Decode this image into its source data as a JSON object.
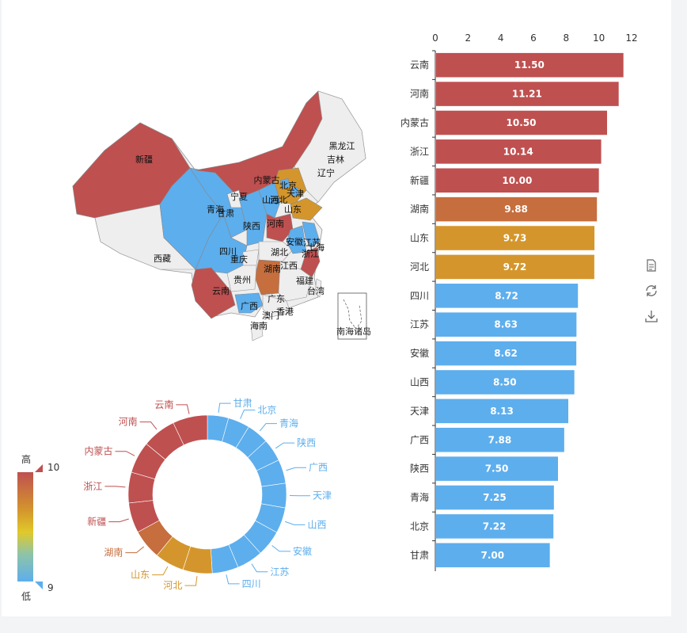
{
  "colors": {
    "high": "#bf5050",
    "orange": "#c66e3e",
    "gold": "#d4962c",
    "low": "#5daeed",
    "none": "#eeeeee",
    "axis": "#333333"
  },
  "visual_map": {
    "high_label": "高",
    "low_label": "低",
    "max_value": "10",
    "min_value": "9"
  },
  "map": {
    "south_sea_label": "南海诸岛"
  },
  "toolbox": {
    "icons": [
      "data-view-icon",
      "restore-icon",
      "save-image-icon"
    ]
  },
  "chart_data": [
    {
      "type": "bar",
      "orientation": "horizontal",
      "categories": [
        "云南",
        "河南",
        "内蒙古",
        "浙江",
        "新疆",
        "湖南",
        "山东",
        "河北",
        "四川",
        "江苏",
        "安徽",
        "山西",
        "天津",
        "广西",
        "陕西",
        "青海",
        "北京",
        "甘肃"
      ],
      "values": [
        11.5,
        11.21,
        10.5,
        10.14,
        10.0,
        9.88,
        9.73,
        9.72,
        8.72,
        8.63,
        8.62,
        8.5,
        8.13,
        7.88,
        7.5,
        7.25,
        7.22,
        7.0
      ],
      "value_labels": [
        "11.50",
        "11.21",
        "10.50",
        "10.14",
        "10.00",
        "9.88",
        "9.73",
        "9.72",
        "8.72",
        "8.63",
        "8.62",
        "8.50",
        "8.13",
        "7.88",
        "7.50",
        "7.25",
        "7.22",
        "7.00"
      ],
      "xlim": [
        0,
        12
      ],
      "x_ticks": [
        "0",
        "2",
        "4",
        "6",
        "8",
        "10",
        "12"
      ],
      "axis_position": "top"
    },
    {
      "type": "pie",
      "style": "donut",
      "slices": [
        {
          "name": "甘肃",
          "value": 7.0
        },
        {
          "name": "北京",
          "value": 7.22
        },
        {
          "name": "青海",
          "value": 7.25
        },
        {
          "name": "陕西",
          "value": 7.5
        },
        {
          "name": "广西",
          "value": 7.88
        },
        {
          "name": "天津",
          "value": 8.13
        },
        {
          "name": "山西",
          "value": 8.5
        },
        {
          "name": "安徽",
          "value": 8.62
        },
        {
          "name": "江苏",
          "value": 8.63
        },
        {
          "name": "四川",
          "value": 8.72
        },
        {
          "name": "河北",
          "value": 9.72
        },
        {
          "name": "山东",
          "value": 9.73
        },
        {
          "name": "湖南",
          "value": 9.88
        },
        {
          "name": "新疆",
          "value": 10.0
        },
        {
          "name": "浙江",
          "value": 10.14
        },
        {
          "name": "内蒙古",
          "value": 10.5
        },
        {
          "name": "河南",
          "value": 11.21
        },
        {
          "name": "云南",
          "value": 11.5
        }
      ]
    },
    {
      "type": "map",
      "region_labels": [
        "新疆",
        "西藏",
        "青海",
        "甘肃",
        "宁夏",
        "内蒙古",
        "黑龙江",
        "吉林",
        "辽宁",
        "北京",
        "天津",
        "河北",
        "山西",
        "山东",
        "陕西",
        "河南",
        "四川",
        "重庆",
        "湖北",
        "安徽",
        "江苏",
        "上海",
        "浙江",
        "湖南",
        "江西",
        "贵州",
        "云南",
        "广西",
        "广东",
        "福建",
        "台湾",
        "香港",
        "澳门",
        "海南"
      ]
    }
  ]
}
